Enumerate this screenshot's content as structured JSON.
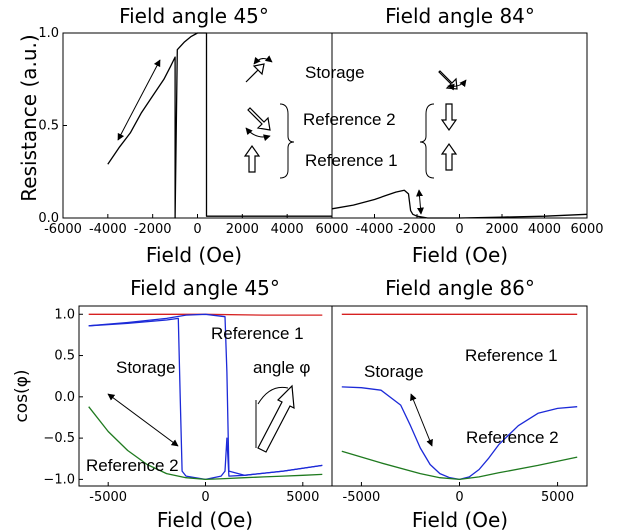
{
  "colors": {
    "black": "#000000",
    "red": "#d62020",
    "blue": "#1c2ad8",
    "green": "#1f7a1f"
  },
  "icons": [
    "double-arrow-icon",
    "hollow-arrow-icon",
    "bracket-icon",
    "curved-arrow-icon"
  ],
  "chart_data": [
    {
      "type": "line",
      "title": "Field angle 45°",
      "xlabel": "Field (Oe)",
      "ylabel": "Resistance (a.u.)",
      "xlim": [
        -6000,
        6000
      ],
      "ylim": [
        0,
        1
      ],
      "xticks": [
        "-6000",
        "-4000",
        "-2000",
        "0",
        "2000",
        "4000",
        "6000"
      ],
      "yticks": [
        "0.0",
        "0.5",
        "1.0"
      ],
      "annotations": [
        "Storage",
        "Reference 2",
        "Reference 1"
      ],
      "series": [
        {
          "color": "#000000",
          "x": [
            -4000,
            -3500,
            -3000,
            -2500,
            -2000,
            -1500,
            -1200,
            -1000,
            -1000,
            -900,
            -600,
            -300,
            0,
            200,
            400,
            400,
            2000,
            4000,
            6000
          ],
          "y": [
            0.29,
            0.38,
            0.46,
            0.57,
            0.66,
            0.75,
            0.82,
            0.87,
            0.0,
            0.91,
            0.95,
            0.98,
            1.0,
            1.0,
            1.0,
            0.01,
            0.01,
            0.01,
            0.01
          ]
        }
      ]
    },
    {
      "type": "line",
      "title": "Field angle 84°",
      "xlabel": "Field (Oe)",
      "xlim": [
        -6000,
        6000
      ],
      "ylim": [
        0,
        1
      ],
      "xticks": [
        "-4000",
        "-2000",
        "0",
        "2000",
        "4000",
        "6000"
      ],
      "series": [
        {
          "color": "#000000",
          "x": [
            -6000,
            -5000,
            -4000,
            -3500,
            -3000,
            -2600,
            -2400,
            -2300,
            -2200,
            -2000,
            -1500,
            0,
            2000,
            4000,
            6000
          ],
          "y": [
            0.05,
            0.07,
            0.1,
            0.12,
            0.14,
            0.15,
            0.13,
            0.04,
            0.02,
            0.01,
            0.0,
            0.0,
            0.005,
            0.01,
            0.02
          ]
        }
      ]
    },
    {
      "type": "line",
      "title": "Field angle 45°",
      "xlabel": "Field (Oe)",
      "ylabel": "cos(φ)",
      "xlim": [
        -6500,
        6500
      ],
      "ylim": [
        -1.08,
        1.1
      ],
      "xticks": [
        "-5000",
        "0",
        "5000"
      ],
      "yticks": [
        "1.0",
        "0.5",
        "0.0",
        "−0.5",
        "−1.0"
      ],
      "annotations": [
        "Reference 1",
        "Storage",
        "angle φ",
        "Reference 2"
      ],
      "series": [
        {
          "color": "#d62020",
          "x": [
            -6000,
            -3000,
            0,
            3000,
            6000
          ],
          "y": [
            1.0,
            1.0,
            1.0,
            0.99,
            0.99
          ]
        },
        {
          "color": "#1c2ad8",
          "x": [
            -6000,
            -4000,
            -2000,
            -1400,
            -1300,
            -1200,
            -1000,
            0,
            800,
            1000,
            1100,
            1200,
            2000,
            4000,
            6000
          ],
          "y": [
            0.86,
            0.89,
            0.93,
            0.95,
            0.0,
            -0.9,
            -0.96,
            -1.0,
            -0.96,
            -0.9,
            -0.5,
            -0.96,
            -0.95,
            -0.9,
            -0.83
          ]
        },
        {
          "color": "#1c2ad8",
          "x": [
            -6000,
            -4000,
            -2000,
            -1000,
            0,
            1000,
            1100,
            1200,
            2000,
            4000,
            6000
          ],
          "y": [
            0.86,
            0.9,
            0.95,
            0.99,
            1.0,
            0.97,
            0.3,
            -0.9,
            -0.95,
            -0.9,
            -0.83
          ]
        },
        {
          "color": "#1f7a1f",
          "x": [
            -6000,
            -5000,
            -4000,
            -3000,
            -2000,
            -1000,
            0,
            1000,
            2000,
            3000,
            4000,
            5000,
            6000
          ],
          "y": [
            -0.12,
            -0.42,
            -0.65,
            -0.82,
            -0.93,
            -0.98,
            -1.0,
            -0.99,
            -0.98,
            -0.97,
            -0.96,
            -0.95,
            -0.94
          ]
        }
      ]
    },
    {
      "type": "line",
      "title": "Field angle 86°",
      "xlabel": "Field (Oe)",
      "xlim": [
        -6500,
        6500
      ],
      "ylim": [
        -1.08,
        1.1
      ],
      "xticks": [
        "-5000",
        "0",
        "5000"
      ],
      "annotations": [
        "Reference 1",
        "Storage",
        "Reference 2"
      ],
      "series": [
        {
          "color": "#d62020",
          "x": [
            -6000,
            -3000,
            0,
            3000,
            6000
          ],
          "y": [
            1.0,
            1.0,
            1.0,
            1.0,
            1.0
          ]
        },
        {
          "color": "#1c2ad8",
          "x": [
            -6000,
            -5000,
            -4000,
            -3000,
            -2500,
            -2000,
            -1500,
            -1000,
            -500,
            0,
            500,
            1000,
            1500,
            2000,
            3000,
            4000,
            5000,
            6000
          ],
          "y": [
            0.12,
            0.11,
            0.08,
            -0.1,
            -0.35,
            -0.62,
            -0.82,
            -0.93,
            -0.98,
            -1.0,
            -0.97,
            -0.88,
            -0.74,
            -0.58,
            -0.35,
            -0.2,
            -0.14,
            -0.12
          ]
        },
        {
          "color": "#1f7a1f",
          "x": [
            -6000,
            -4000,
            -2000,
            -1000,
            0,
            1000,
            2000,
            4000,
            6000
          ],
          "y": [
            -0.66,
            -0.8,
            -0.93,
            -0.98,
            -1.0,
            -0.97,
            -0.92,
            -0.83,
            -0.73
          ]
        }
      ]
    }
  ]
}
